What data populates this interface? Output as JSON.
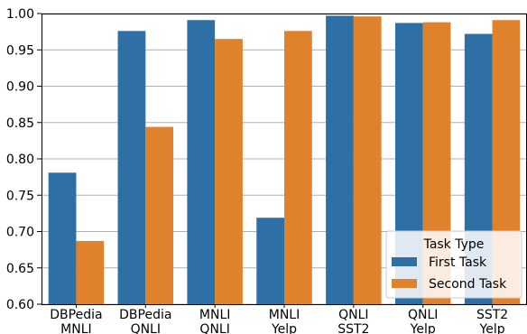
{
  "chart_data": {
    "type": "bar",
    "categories": [
      [
        "DBPedia",
        "MNLI"
      ],
      [
        "DBPedia",
        "QNLI"
      ],
      [
        "MNLI",
        "QNLI"
      ],
      [
        "MNLI",
        "Yelp"
      ],
      [
        "QNLI",
        "SST2"
      ],
      [
        "QNLI",
        "Yelp"
      ],
      [
        "SST2",
        "Yelp"
      ]
    ],
    "series": [
      {
        "name": "First Task",
        "color": "#2e6fa5",
        "values": [
          0.781,
          0.976,
          0.991,
          0.719,
          0.997,
          0.987,
          0.972
        ]
      },
      {
        "name": "Second Task",
        "color": "#e0812b",
        "values": [
          0.687,
          0.844,
          0.965,
          0.976,
          0.996,
          0.988,
          0.991
        ]
      }
    ],
    "ylim": [
      0.6,
      1.0
    ],
    "yticks": [
      "0.60",
      "0.65",
      "0.70",
      "0.75",
      "0.80",
      "0.85",
      "0.90",
      "0.95",
      "1.00"
    ],
    "grid": true,
    "legend": {
      "title": "Task Type",
      "position": "lower-right"
    },
    "title": "",
    "xlabel": "",
    "ylabel": ""
  }
}
